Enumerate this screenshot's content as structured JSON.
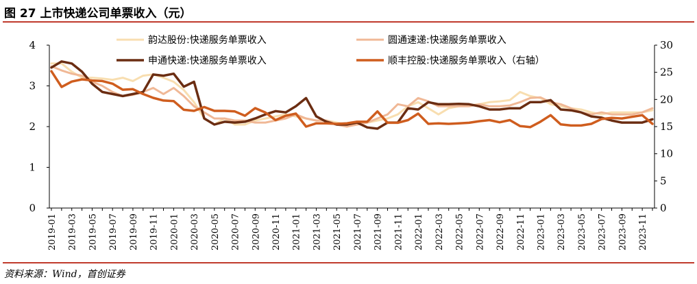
{
  "figure": {
    "title": "图 27 上市快递公司单票收入（元）",
    "source": "资料来源：Wind，首创证券"
  },
  "chart_data": {
    "type": "line",
    "title": "图 27 上市快递公司单票收入（元）",
    "xlabel": "",
    "ylabel": "",
    "ylim": [
      0,
      4
    ],
    "y2lim": [
      0,
      30
    ],
    "y_ticks": [
      "0",
      "1",
      "2",
      "3",
      "4"
    ],
    "y2_ticks": [
      "0",
      "5",
      "10",
      "15",
      "20",
      "25",
      "30"
    ],
    "x_tick_labels": [
      "2019-01",
      "2019-03",
      "2019-05",
      "2019-07",
      "2019-09",
      "2019-11",
      "2020-01",
      "2020-03",
      "2020-05",
      "2020-07",
      "2020-09",
      "2020-11",
      "2021-01",
      "2021-03",
      "2021-05",
      "2021-07",
      "2021-09",
      "2021-11",
      "2022-01",
      "2022-03",
      "2022-05",
      "2022-07",
      "2022-09",
      "2022-11",
      "2023-01",
      "2023-03",
      "2023-05",
      "2023-07",
      "2023-09",
      "2023-11"
    ],
    "x": [
      "2019-01",
      "2019-02",
      "2019-03",
      "2019-04",
      "2019-05",
      "2019-06",
      "2019-07",
      "2019-08",
      "2019-09",
      "2019-10",
      "2019-11",
      "2019-12",
      "2020-01",
      "2020-02",
      "2020-03",
      "2020-04",
      "2020-05",
      "2020-06",
      "2020-07",
      "2020-08",
      "2020-09",
      "2020-10",
      "2020-11",
      "2020-12",
      "2021-01",
      "2021-02",
      "2021-03",
      "2021-04",
      "2021-05",
      "2021-06",
      "2021-07",
      "2021-08",
      "2021-09",
      "2021-10",
      "2021-11",
      "2021-12",
      "2022-01",
      "2022-02",
      "2022-03",
      "2022-04",
      "2022-05",
      "2022-06",
      "2022-07",
      "2022-08",
      "2022-09",
      "2022-10",
      "2022-11",
      "2022-12",
      "2023-01",
      "2023-02",
      "2023-03",
      "2023-04",
      "2023-05",
      "2023-06",
      "2023-07",
      "2023-08",
      "2023-09",
      "2023-10",
      "2023-11",
      "2023-12"
    ],
    "legend_position": "top",
    "series": [
      {
        "name": "韵达股份:快递服务单票收入",
        "axis": "left",
        "color": "#f8deb0",
        "width": 3,
        "values": [
          3.55,
          3.55,
          3.35,
          3.2,
          3.2,
          3.18,
          3.15,
          3.2,
          3.12,
          3.25,
          3.28,
          3.2,
          3.1,
          2.9,
          2.6,
          2.2,
          2.05,
          2.2,
          2.05,
          2.05,
          2.15,
          2.2,
          2.25,
          2.3,
          2.25,
          2.2,
          2.15,
          2.15,
          2.1,
          2.05,
          2.05,
          2.1,
          2.15,
          2.2,
          2.3,
          2.5,
          2.6,
          2.45,
          2.3,
          2.45,
          2.5,
          2.52,
          2.55,
          2.6,
          2.62,
          2.65,
          2.85,
          2.75,
          2.7,
          2.55,
          2.5,
          2.45,
          2.42,
          2.35,
          2.3,
          2.35,
          2.35,
          2.35,
          2.35,
          2.4
        ]
      },
      {
        "name": "圆通速递:快递服务单票收入",
        "axis": "left",
        "color": "#f0b896",
        "width": 3,
        "values": [
          3.48,
          3.38,
          3.3,
          3.25,
          3.1,
          3.0,
          2.85,
          2.75,
          2.78,
          2.85,
          2.95,
          2.8,
          2.95,
          2.75,
          2.5,
          2.35,
          2.2,
          2.2,
          2.15,
          2.15,
          2.1,
          2.1,
          2.15,
          2.2,
          2.3,
          2.2,
          2.15,
          2.15,
          2.05,
          2.0,
          2.05,
          2.1,
          2.2,
          2.3,
          2.55,
          2.5,
          2.7,
          2.62,
          2.5,
          2.5,
          2.5,
          2.5,
          2.55,
          2.5,
          2.5,
          2.52,
          2.6,
          2.7,
          2.72,
          2.6,
          2.55,
          2.45,
          2.35,
          2.3,
          2.35,
          2.3,
          2.3,
          2.3,
          2.35,
          2.45
        ]
      },
      {
        "name": "申通快递:快递服务单票收入",
        "axis": "left",
        "color": "#6b2d12",
        "width": 3.5,
        "values": [
          3.45,
          3.6,
          3.55,
          3.35,
          3.05,
          2.85,
          2.8,
          2.75,
          2.8,
          2.85,
          3.28,
          3.25,
          3.3,
          2.98,
          3.1,
          2.2,
          2.05,
          2.12,
          2.1,
          2.12,
          2.2,
          2.3,
          2.38,
          2.35,
          2.5,
          2.7,
          2.25,
          2.12,
          2.05,
          2.05,
          2.1,
          1.98,
          1.95,
          2.1,
          2.1,
          2.45,
          2.42,
          2.6,
          2.55,
          2.55,
          2.56,
          2.55,
          2.5,
          2.42,
          2.42,
          2.45,
          2.45,
          2.6,
          2.6,
          2.65,
          2.42,
          2.4,
          2.35,
          2.25,
          2.22,
          2.15,
          2.1,
          2.1,
          2.1,
          2.18
        ]
      },
      {
        "name": "顺丰控股:快递服务单票收入（右轴）",
        "axis": "right",
        "color": "#cf5d1e",
        "width": 3.5,
        "values": [
          25.2,
          22.3,
          23.3,
          23.7,
          23.5,
          23.4,
          22.9,
          21.8,
          21.9,
          21.0,
          20.3,
          19.8,
          19.7,
          18.1,
          17.9,
          18.6,
          17.9,
          17.9,
          17.8,
          17.0,
          18.4,
          17.6,
          16.2,
          17.0,
          17.4,
          15.0,
          15.6,
          15.6,
          15.5,
          15.6,
          15.9,
          15.9,
          17.8,
          15.7,
          15.7,
          16.2,
          17.4,
          15.5,
          15.6,
          15.5,
          15.6,
          15.7,
          16.0,
          16.2,
          15.8,
          16.2,
          15.1,
          14.9,
          15.9,
          17.1,
          15.4,
          15.2,
          15.2,
          15.5,
          16.4,
          16.6,
          16.5,
          16.8,
          17.1,
          15.5
        ]
      }
    ]
  }
}
